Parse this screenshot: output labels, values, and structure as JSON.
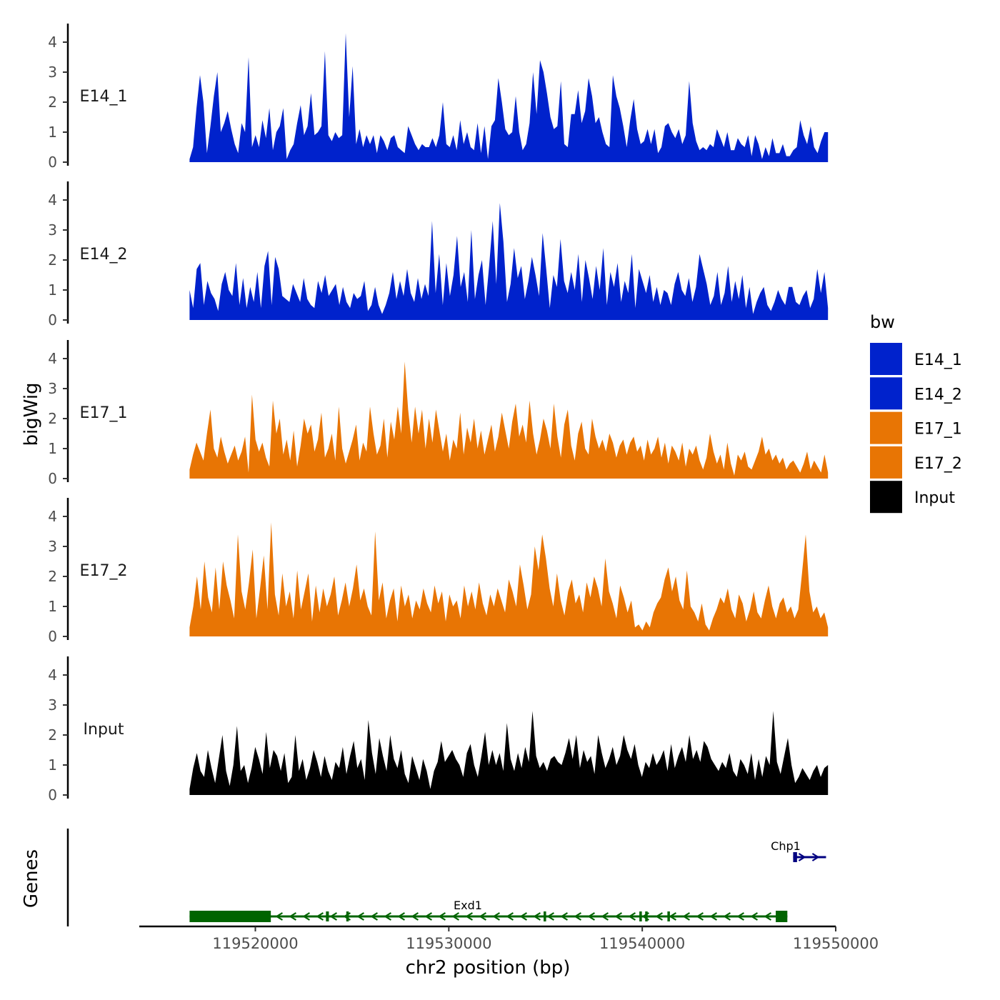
{
  "chart_data": {
    "type": "area",
    "y_axis_label": "bigWig",
    "y_ticks": [
      "0",
      "1",
      "2",
      "3",
      "4"
    ],
    "ylim": [
      0,
      4.5
    ],
    "xlim": [
      119514000,
      119550000
    ],
    "data_x_range": [
      119516600,
      119549600
    ],
    "x_ticks": [
      {
        "value": 119520000,
        "label": "119520000"
      },
      {
        "value": 119530000,
        "label": "119530000"
      },
      {
        "value": 119540000,
        "label": "119540000"
      },
      {
        "value": 119550000,
        "label": "119550000"
      }
    ],
    "xlabel": "chr2 position (bp)",
    "legend": {
      "title": "bw",
      "entries": [
        {
          "label": "E14_1",
          "color": "#0022CC"
        },
        {
          "label": "E14_2",
          "color": "#0022CC"
        },
        {
          "label": "E17_1",
          "color": "#E87504"
        },
        {
          "label": "E17_2",
          "color": "#E87504"
        },
        {
          "label": "Input",
          "color": "#000000"
        }
      ]
    },
    "series": [
      {
        "name": "E14_1",
        "color": "#0022CC",
        "values": [
          0.1,
          0.5,
          1.8,
          2.9,
          2.0,
          0.3,
          1.2,
          2.2,
          3.0,
          1.0,
          1.3,
          1.7,
          1.1,
          0.6,
          0.3,
          1.3,
          1.0,
          3.5,
          0.5,
          0.9,
          0.5,
          1.4,
          0.8,
          1.8,
          0.4,
          1.0,
          1.2,
          1.8,
          0.1,
          0.4,
          0.6,
          1.3,
          1.9,
          0.9,
          1.2,
          2.3,
          0.9,
          1.0,
          1.2,
          3.7,
          0.9,
          0.7,
          1.0,
          0.8,
          0.9,
          4.3,
          1.5,
          3.2,
          0.6,
          1.1,
          0.5,
          0.9,
          0.6,
          0.9,
          0.3,
          0.9,
          0.7,
          0.4,
          0.8,
          0.9,
          0.5,
          0.4,
          0.3,
          1.2,
          0.9,
          0.6,
          0.4,
          0.6,
          0.5,
          0.5,
          0.8,
          0.5,
          0.9,
          2.0,
          0.6,
          0.5,
          0.9,
          0.4,
          1.4,
          0.6,
          1.0,
          0.5,
          0.4,
          1.3,
          0.3,
          1.2,
          0.1,
          1.2,
          1.4,
          2.8,
          2.0,
          1.1,
          0.9,
          1.0,
          2.2,
          1.0,
          0.4,
          0.6,
          1.3,
          3.0,
          1.6,
          3.4,
          3.0,
          2.3,
          1.5,
          1.1,
          1.2,
          2.7,
          0.6,
          0.5,
          1.6,
          1.6,
          2.4,
          1.3,
          1.7,
          2.8,
          2.2,
          1.3,
          1.5,
          1.0,
          0.6,
          0.5,
          2.9,
          2.2,
          1.8,
          1.2,
          0.5,
          1.4,
          2.1,
          1.1,
          0.6,
          0.7,
          1.1,
          0.6,
          1.1,
          0.3,
          0.5,
          1.2,
          1.3,
          1.0,
          0.8,
          1.1,
          0.6,
          0.9,
          2.7,
          1.3,
          0.7,
          0.4,
          0.5,
          0.4,
          0.6,
          0.5,
          1.1,
          0.8,
          0.5,
          1.0,
          0.4,
          0.4,
          0.8,
          0.6,
          0.5,
          0.9,
          0.2,
          0.9,
          0.6,
          0.1,
          0.5,
          0.2,
          0.8,
          0.3,
          0.3,
          0.6,
          0.2,
          0.2,
          0.4,
          0.5,
          1.4,
          0.9,
          0.6,
          1.2,
          0.5,
          0.3,
          0.7,
          1.0,
          1.0
        ]
      },
      {
        "name": "E14_2",
        "color": "#0022CC",
        "values": [
          1.0,
          0.4,
          1.7,
          1.9,
          0.5,
          1.3,
          0.9,
          0.7,
          0.3,
          1.2,
          1.6,
          1.0,
          0.8,
          1.9,
          0.5,
          1.4,
          0.4,
          1.1,
          0.6,
          1.6,
          0.4,
          1.8,
          2.3,
          0.5,
          2.1,
          1.7,
          0.8,
          0.7,
          0.6,
          1.2,
          0.9,
          0.6,
          1.4,
          0.7,
          0.5,
          0.4,
          1.3,
          0.9,
          1.5,
          0.8,
          1.0,
          1.2,
          0.5,
          1.1,
          0.6,
          0.4,
          0.9,
          0.7,
          0.8,
          1.3,
          0.3,
          0.5,
          1.1,
          0.5,
          0.2,
          0.5,
          0.9,
          1.6,
          0.7,
          1.3,
          0.8,
          1.7,
          0.9,
          0.6,
          1.4,
          0.7,
          1.2,
          0.8,
          3.3,
          0.9,
          2.2,
          0.5,
          1.9,
          0.8,
          1.5,
          2.8,
          1.1,
          1.6,
          0.6,
          3.0,
          0.7,
          1.5,
          2.0,
          0.5,
          1.8,
          3.3,
          1.2,
          3.9,
          2.6,
          0.6,
          1.2,
          2.4,
          1.4,
          1.8,
          0.7,
          1.3,
          2.1,
          1.5,
          0.8,
          2.9,
          1.7,
          0.4,
          1.5,
          1.1,
          2.7,
          1.3,
          0.9,
          1.6,
          1.0,
          2.2,
          0.6,
          2.0,
          1.4,
          0.7,
          1.8,
          1.0,
          2.4,
          0.5,
          1.6,
          1.1,
          1.9,
          0.6,
          1.3,
          0.9,
          2.2,
          0.4,
          1.7,
          1.3,
          0.9,
          1.5,
          0.6,
          1.1,
          0.5,
          1.0,
          0.9,
          0.5,
          1.2,
          1.6,
          1.0,
          0.8,
          1.4,
          0.6,
          1.1,
          2.2,
          1.7,
          1.2,
          0.5,
          0.8,
          1.6,
          0.5,
          0.9,
          1.8,
          0.6,
          1.3,
          0.7,
          1.5,
          0.4,
          1.1,
          0.2,
          0.6,
          0.9,
          1.1,
          0.5,
          0.3,
          0.6,
          1.0,
          0.7,
          0.5,
          1.1,
          1.1,
          0.6,
          0.5,
          0.8,
          1.0,
          0.4,
          0.7,
          1.7,
          0.9,
          1.6,
          0.4
        ]
      },
      {
        "name": "E17_1",
        "color": "#E87504",
        "values": [
          0.3,
          0.8,
          1.2,
          0.9,
          0.6,
          1.5,
          2.3,
          1.0,
          0.7,
          1.4,
          0.9,
          0.5,
          0.8,
          1.1,
          0.6,
          0.9,
          1.4,
          0.2,
          2.8,
          1.3,
          0.9,
          1.2,
          0.7,
          0.4,
          2.6,
          1.5,
          2.0,
          0.8,
          1.3,
          0.6,
          1.6,
          0.4,
          1.1,
          2.0,
          1.5,
          1.8,
          0.9,
          1.3,
          2.2,
          0.7,
          1.0,
          1.5,
          0.6,
          2.4,
          1.0,
          0.5,
          0.9,
          1.3,
          1.8,
          0.6,
          1.2,
          0.9,
          2.4,
          1.5,
          0.8,
          1.1,
          2.0,
          0.7,
          1.9,
          1.3,
          2.4,
          1.5,
          3.9,
          2.3,
          1.2,
          2.4,
          1.5,
          2.3,
          1.0,
          2.0,
          1.2,
          2.3,
          1.6,
          0.9,
          1.5,
          0.6,
          1.3,
          1.0,
          2.2,
          0.8,
          1.7,
          1.2,
          2.0,
          1.0,
          1.6,
          0.8,
          1.3,
          1.8,
          0.9,
          1.4,
          2.2,
          1.6,
          1.0,
          1.9,
          2.5,
          1.4,
          1.8,
          1.2,
          2.6,
          1.5,
          0.8,
          1.3,
          2.0,
          1.6,
          1.0,
          2.5,
          1.4,
          0.7,
          1.8,
          2.3,
          1.1,
          0.6,
          1.5,
          1.9,
          1.0,
          0.8,
          2.0,
          1.4,
          1.0,
          1.3,
          0.9,
          1.5,
          1.2,
          0.7,
          1.1,
          1.3,
          0.8,
          1.2,
          1.4,
          0.9,
          1.1,
          0.6,
          1.3,
          0.8,
          1.0,
          1.4,
          0.7,
          1.2,
          0.5,
          1.1,
          0.9,
          0.6,
          1.2,
          0.4,
          1.0,
          0.8,
          1.1,
          0.6,
          0.3,
          0.7,
          1.5,
          0.9,
          0.5,
          0.8,
          0.3,
          1.2,
          0.5,
          0.1,
          0.8,
          0.6,
          0.9,
          0.4,
          0.3,
          0.6,
          0.9,
          1.4,
          0.8,
          1.0,
          0.6,
          0.8,
          0.5,
          0.7,
          0.3,
          0.5,
          0.6,
          0.4,
          0.2,
          0.5,
          0.9,
          0.3,
          0.6,
          0.4,
          0.2,
          0.8,
          0.2
        ]
      },
      {
        "name": "E17_2",
        "color": "#E87504",
        "values": [
          0.3,
          1.0,
          2.0,
          0.9,
          2.5,
          1.3,
          0.8,
          2.3,
          0.9,
          2.5,
          1.7,
          1.2,
          0.6,
          3.4,
          1.5,
          0.9,
          1.8,
          2.9,
          0.6,
          1.6,
          2.7,
          0.9,
          3.8,
          1.4,
          0.7,
          2.1,
          1.0,
          1.5,
          0.6,
          2.2,
          0.9,
          1.5,
          2.1,
          0.5,
          1.7,
          0.8,
          1.6,
          1.0,
          1.4,
          2.0,
          0.7,
          1.2,
          1.8,
          1.0,
          1.6,
          2.4,
          1.2,
          1.6,
          1.0,
          0.7,
          3.5,
          1.2,
          1.8,
          0.6,
          1.2,
          1.6,
          0.5,
          1.7,
          1.0,
          1.4,
          0.6,
          1.2,
          0.9,
          1.6,
          1.1,
          0.8,
          1.7,
          1.1,
          1.5,
          0.5,
          1.4,
          1.0,
          1.2,
          0.6,
          1.7,
          1.0,
          1.5,
          0.9,
          1.8,
          1.1,
          0.7,
          1.4,
          1.0,
          1.6,
          1.2,
          0.8,
          1.9,
          1.5,
          1.0,
          2.4,
          1.7,
          0.9,
          1.4,
          3.0,
          2.2,
          3.4,
          2.6,
          1.6,
          1.0,
          2.1,
          1.2,
          0.7,
          1.5,
          1.9,
          1.1,
          1.4,
          0.8,
          1.8,
          1.3,
          2.0,
          1.6,
          1.0,
          2.6,
          1.5,
          1.1,
          0.6,
          1.7,
          1.3,
          0.8,
          1.2,
          0.3,
          0.4,
          0.2,
          0.5,
          0.3,
          0.8,
          1.1,
          1.3,
          1.9,
          2.3,
          1.5,
          2.0,
          1.2,
          0.9,
          2.2,
          1.0,
          0.8,
          0.5,
          1.1,
          0.4,
          0.2,
          0.6,
          0.9,
          1.3,
          1.1,
          1.6,
          0.9,
          0.6,
          1.4,
          1.1,
          0.5,
          0.9,
          1.5,
          0.8,
          0.6,
          1.2,
          1.7,
          1.0,
          0.6,
          1.1,
          1.3,
          0.8,
          1.0,
          0.6,
          0.9,
          2.1,
          3.4,
          1.5,
          0.8,
          1.0,
          0.6,
          0.8,
          0.3
        ]
      },
      {
        "name": "Input",
        "color": "#000000",
        "values": [
          0.2,
          0.9,
          1.4,
          0.8,
          0.6,
          1.5,
          0.9,
          0.4,
          1.2,
          2.0,
          0.8,
          0.3,
          1.0,
          2.3,
          0.8,
          1.0,
          0.4,
          0.9,
          1.6,
          1.2,
          0.7,
          2.1,
          0.9,
          1.5,
          1.3,
          0.8,
          1.4,
          0.4,
          0.6,
          2.0,
          0.8,
          1.2,
          0.5,
          0.9,
          1.5,
          1.1,
          0.6,
          1.3,
          0.8,
          0.5,
          1.1,
          0.9,
          1.6,
          0.7,
          1.3,
          1.8,
          0.9,
          1.2,
          0.5,
          2.5,
          1.4,
          0.7,
          1.9,
          1.3,
          0.8,
          2.0,
          1.2,
          0.9,
          1.5,
          0.7,
          0.4,
          1.3,
          0.9,
          0.5,
          1.2,
          0.8,
          0.2,
          0.8,
          1.1,
          1.8,
          1.1,
          1.3,
          1.5,
          1.2,
          1.0,
          0.6,
          1.4,
          1.7,
          1.0,
          0.6,
          1.3,
          2.1,
          1.0,
          1.5,
          1.0,
          1.4,
          0.8,
          2.4,
          1.2,
          0.8,
          1.4,
          0.9,
          1.6,
          1.1,
          2.8,
          1.3,
          0.9,
          1.1,
          0.8,
          1.2,
          1.3,
          1.1,
          1.0,
          1.4,
          1.9,
          1.2,
          2.0,
          0.9,
          1.5,
          1.1,
          1.3,
          0.7,
          2.0,
          1.4,
          0.9,
          1.2,
          1.6,
          1.0,
          1.3,
          2.0,
          1.5,
          1.2,
          1.7,
          1.0,
          0.6,
          1.1,
          0.9,
          1.4,
          1.0,
          1.2,
          1.5,
          0.8,
          1.7,
          0.9,
          1.3,
          1.6,
          1.1,
          2.0,
          1.2,
          1.5,
          1.1,
          1.8,
          1.6,
          1.2,
          1.0,
          0.8,
          1.1,
          0.9,
          1.4,
          0.8,
          0.6,
          1.2,
          1.0,
          0.7,
          1.4,
          0.5,
          1.2,
          0.6,
          1.3,
          1.0,
          2.8,
          1.1,
          0.7,
          1.3,
          1.9,
          1.0,
          0.4,
          0.6,
          0.9,
          0.7,
          0.5,
          0.8,
          1.0,
          0.6,
          0.9,
          1.0
        ]
      }
    ],
    "gene_track": {
      "label": "Genes",
      "genes": [
        {
          "name": "Exd1",
          "color": "#006400",
          "start": 119516600,
          "end": 119547500,
          "strand": "-",
          "exons": [
            [
              119516600,
              119520800
            ],
            [
              119523650,
              119523800
            ],
            [
              119524700,
              119524800
            ],
            [
              119534900,
              119535000
            ],
            [
              119539850,
              119539950
            ],
            [
              119540150,
              119540250
            ],
            [
              119541300,
              119541400
            ],
            [
              119547000,
              119547100
            ],
            [
              119546900,
              119547500
            ]
          ]
        },
        {
          "name": "Chp1",
          "color": "#000080",
          "start": 119547800,
          "end": 119549500,
          "strand": "+",
          "exons": [
            [
              119547800,
              119548000
            ]
          ]
        }
      ]
    }
  }
}
